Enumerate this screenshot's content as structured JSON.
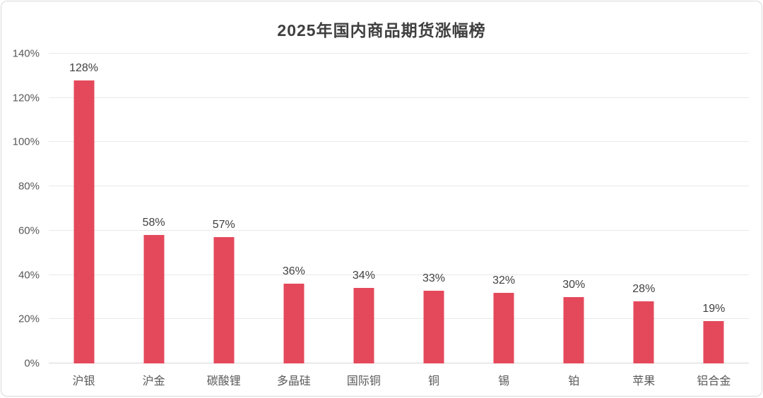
{
  "frame": {
    "background": "#ffffff",
    "border_color": "#d9d9d9"
  },
  "chart_data": {
    "type": "bar",
    "title": "2025年国内商品期货涨幅榜",
    "categories": [
      "沪银",
      "沪金",
      "碳酸锂",
      "多晶硅",
      "国际铜",
      "铜",
      "锡",
      "铂",
      "苹果",
      "铝合金"
    ],
    "values": [
      128,
      58,
      57,
      36,
      34,
      33,
      32,
      30,
      28,
      19
    ],
    "data_labels": [
      "128%",
      "58%",
      "57%",
      "36%",
      "34%",
      "33%",
      "32%",
      "30%",
      "28%",
      "19%"
    ],
    "xlabel": "",
    "ylabel": "",
    "ylim": [
      0,
      140
    ],
    "y_tick_step": 20,
    "y_tick_labels": [
      "0%",
      "20%",
      "40%",
      "60%",
      "80%",
      "100%",
      "120%",
      "140%"
    ],
    "grid": "horizontal",
    "legend": "none",
    "bar_color": "#e4495b",
    "title_color": "#3f3f3f",
    "tick_label_color": "#595959",
    "data_label_color": "#404040",
    "gridline_color": "#e9e9e9"
  }
}
